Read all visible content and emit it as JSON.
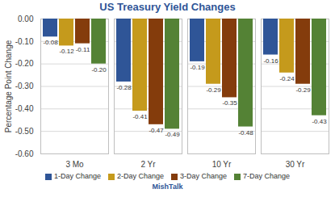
{
  "chart_data": {
    "type": "bar",
    "title": "US Treasury Yield Changes",
    "x_label": "MishTalk",
    "y_label": "Percentage Point Change",
    "categories": [
      "3 Mo",
      "2 Yr",
      "10 Yr",
      "30 Yr"
    ],
    "series": [
      {
        "name": "1-Day Change",
        "color": "#2f5597",
        "values": [
          -0.08,
          -0.28,
          -0.19,
          -0.16
        ],
        "value_labels": [
          "-0.08",
          "-0.28",
          "-0.19",
          "-0.16"
        ]
      },
      {
        "name": "2-Day Change",
        "color": "#c59a1c",
        "values": [
          -0.12,
          -0.41,
          -0.29,
          -0.24
        ],
        "value_labels": [
          "-0.12",
          "-0.41",
          "-0.29",
          "-0.24"
        ]
      },
      {
        "name": "3-Day Change",
        "color": "#843c0c",
        "values": [
          -0.11,
          -0.47,
          -0.35,
          -0.29
        ],
        "value_labels": [
          "-0.11",
          "-0.47",
          "-0.35",
          "-0.29"
        ]
      },
      {
        "name": "7-Day Change",
        "color": "#548235",
        "values": [
          -0.2,
          -0.49,
          -0.48,
          -0.43
        ],
        "value_labels": [
          "-0.20",
          "-0.49",
          "-0.48",
          "-0.43"
        ]
      }
    ],
    "ylim": [
      -0.6,
      0
    ],
    "yticks": [
      {
        "value": -0.6,
        "label": "-0.60"
      },
      {
        "value": -0.5,
        "label": "-0.50"
      },
      {
        "value": -0.4,
        "label": "-0.40"
      },
      {
        "value": -0.3,
        "label": "-0.30"
      },
      {
        "value": -0.2,
        "label": "-0.20"
      },
      {
        "value": -0.1,
        "label": "-0.10"
      },
      {
        "value": 0,
        "label": "0.00"
      }
    ],
    "grid": true,
    "data_labels": true,
    "legend": "bottom"
  }
}
